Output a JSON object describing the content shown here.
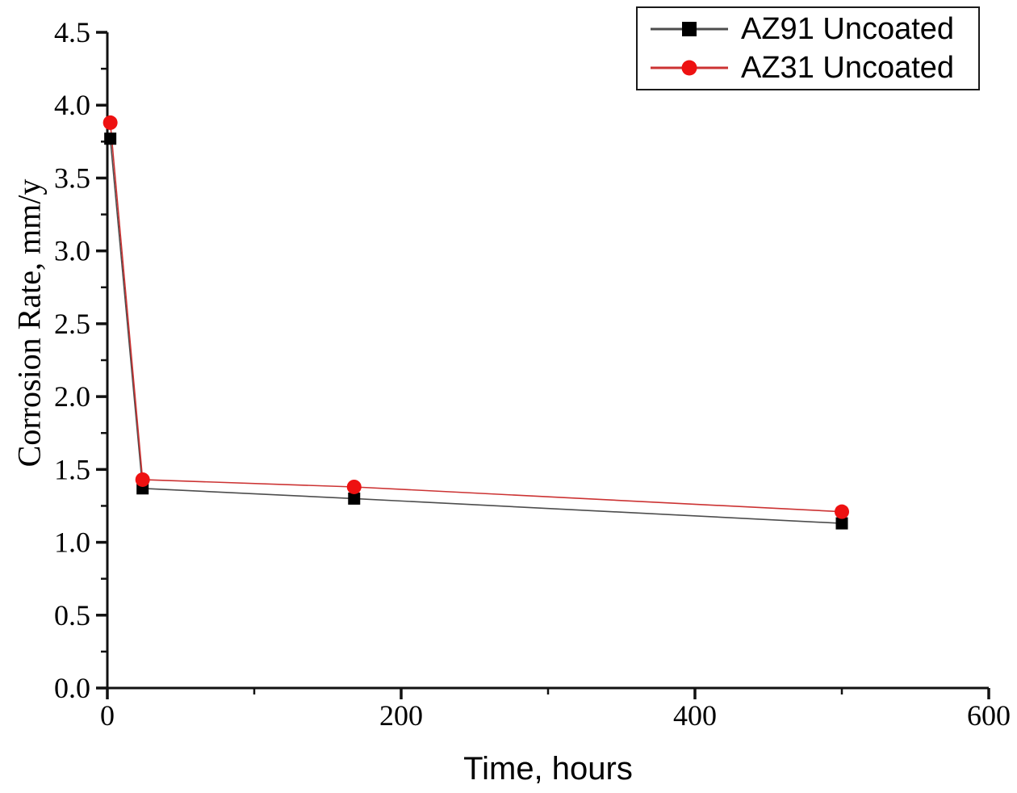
{
  "figure": {
    "background": "#ffffff",
    "axis_color": "#111111"
  },
  "chart_data": {
    "type": "line",
    "title": "",
    "xlabel": "Time, hours",
    "ylabel": "Corrosion Rate, mm/y",
    "xlim": [
      0,
      600
    ],
    "ylim": [
      0.0,
      4.5
    ],
    "grid": false,
    "legend_position": "top-right",
    "x_tick_values": [
      0,
      200,
      400,
      600
    ],
    "x_tick_labels": [
      "0",
      "200",
      "400",
      "600"
    ],
    "x_minor_ticks": [
      100,
      300,
      500
    ],
    "y_tick_values": [
      0,
      0.5,
      1,
      1.5,
      2,
      2.5,
      3,
      3.5,
      4,
      4.5
    ],
    "y_tick_labels": [
      "0.0",
      "0.5",
      "1.0",
      "1.5",
      "2.0",
      "2.5",
      "3.0",
      "3.5",
      "4.0",
      "4.5"
    ],
    "y_minor_ticks": [
      0.25,
      0.75,
      1.25,
      1.75,
      2.25,
      2.75,
      3.25,
      3.75,
      4.25
    ],
    "series": [
      {
        "name": "AZ91 Uncoated",
        "marker": "square",
        "marker_color": "#000000",
        "line_color": "#4d4d4d",
        "x": [
          2,
          24,
          168,
          500
        ],
        "y": [
          3.77,
          1.37,
          1.3,
          1.13
        ]
      },
      {
        "name": "AZ31 Uncoated",
        "marker": "circle",
        "marker_color": "#ee1111",
        "line_color": "#cc3333",
        "x": [
          2,
          24,
          168,
          500
        ],
        "y": [
          3.88,
          1.43,
          1.38,
          1.21
        ]
      }
    ]
  }
}
